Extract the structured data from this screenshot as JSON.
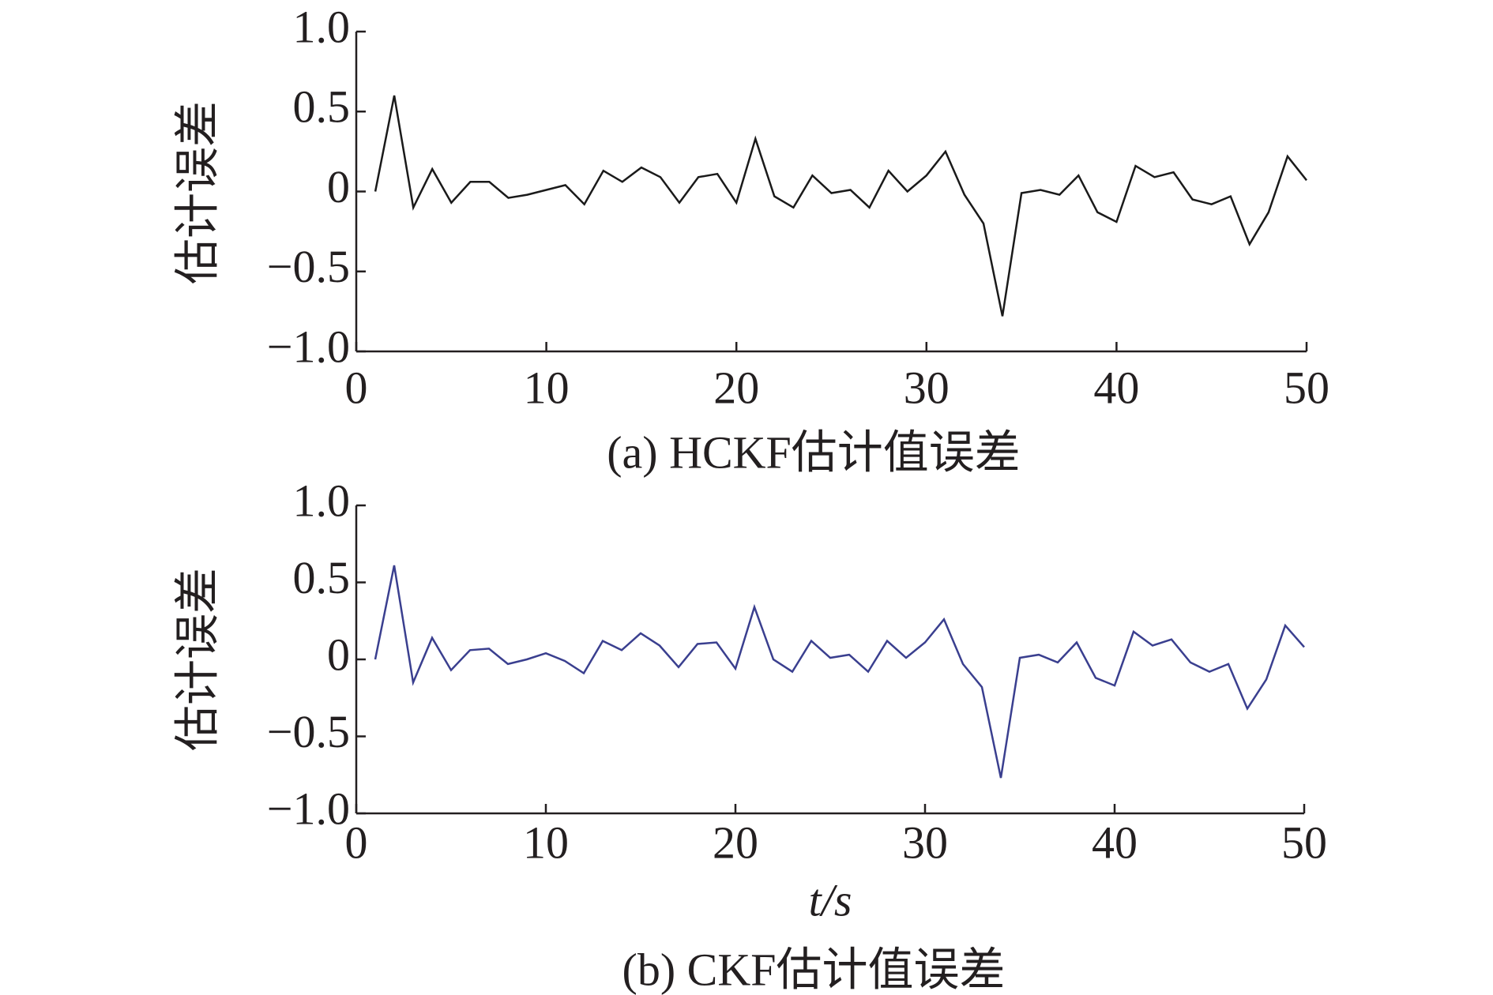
{
  "chart_data": [
    {
      "type": "line",
      "caption": "(a) HCKF估计值误差",
      "ylabel": "估计误差",
      "x": [
        1,
        2,
        3,
        4,
        5,
        6,
        7,
        8,
        9,
        10,
        11,
        12,
        13,
        14,
        15,
        16,
        17,
        18,
        19,
        20,
        21,
        22,
        23,
        24,
        25,
        26,
        27,
        28,
        29,
        30,
        31,
        32,
        33,
        34,
        35,
        36,
        37,
        38,
        39,
        40,
        41,
        42,
        43,
        44,
        45,
        46,
        47,
        48,
        49,
        50
      ],
      "color": "#1a1a1a",
      "values": [
        0,
        0.6,
        -0.1,
        0.14,
        -0.07,
        0.06,
        0.06,
        -0.04,
        -0.02,
        0.01,
        0.04,
        -0.08,
        0.13,
        0.06,
        0.15,
        0.09,
        -0.07,
        0.09,
        0.11,
        -0.07,
        0.33,
        -0.03,
        -0.1,
        0.1,
        -0.01,
        0.01,
        -0.1,
        0.13,
        0,
        0.1,
        0.25,
        -0.02,
        -0.2,
        -0.78,
        -0.01,
        0.01,
        -0.02,
        0.1,
        -0.13,
        -0.19,
        0.16,
        0.09,
        0.12,
        -0.05,
        -0.08,
        -0.03,
        -0.33,
        -0.13,
        0.22,
        0.07
      ],
      "xlim": [
        0,
        50
      ],
      "xticks": [
        0,
        10,
        20,
        30,
        40,
        50
      ],
      "ylim": [
        -1,
        1
      ],
      "yticks": [
        {
          "value": -1,
          "label": "−1.0"
        },
        {
          "value": -0.5,
          "label": "−0.5"
        },
        0,
        0.5,
        {
          "value": 1,
          "label": "1.0"
        }
      ]
    },
    {
      "type": "line",
      "caption": "(b) CKF估计值误差",
      "ylabel": "估计误差",
      "xlabel": "t/s",
      "x": [
        1,
        2,
        3,
        4,
        5,
        6,
        7,
        8,
        9,
        10,
        11,
        12,
        13,
        14,
        15,
        16,
        17,
        18,
        19,
        20,
        21,
        22,
        23,
        24,
        25,
        26,
        27,
        28,
        29,
        30,
        31,
        32,
        33,
        34,
        35,
        36,
        37,
        38,
        39,
        40,
        41,
        42,
        43,
        44,
        45,
        46,
        47,
        48,
        49,
        50
      ],
      "color": "#3a3f8f",
      "values": [
        0,
        0.61,
        -0.15,
        0.14,
        -0.07,
        0.06,
        0.07,
        -0.03,
        0,
        0.04,
        -0.01,
        -0.09,
        0.12,
        0.06,
        0.17,
        0.09,
        -0.05,
        0.1,
        0.11,
        -0.06,
        0.34,
        0,
        -0.08,
        0.12,
        0.01,
        0.03,
        -0.08,
        0.12,
        0.01,
        0.11,
        0.26,
        -0.03,
        -0.18,
        -0.77,
        0.01,
        0.03,
        -0.02,
        0.11,
        -0.12,
        -0.17,
        0.18,
        0.09,
        0.13,
        -0.02,
        -0.08,
        -0.03,
        -0.32,
        -0.13,
        0.22,
        0.08
      ],
      "xlim": [
        0,
        50
      ],
      "xticks": [
        0,
        10,
        20,
        30,
        40,
        50
      ],
      "ylim": [
        -1,
        1
      ],
      "yticks": [
        {
          "value": -1,
          "label": "−1.0"
        },
        {
          "value": -0.5,
          "label": "−0.5"
        },
        0,
        0.5,
        {
          "value": 1,
          "label": "1.0"
        }
      ]
    }
  ]
}
